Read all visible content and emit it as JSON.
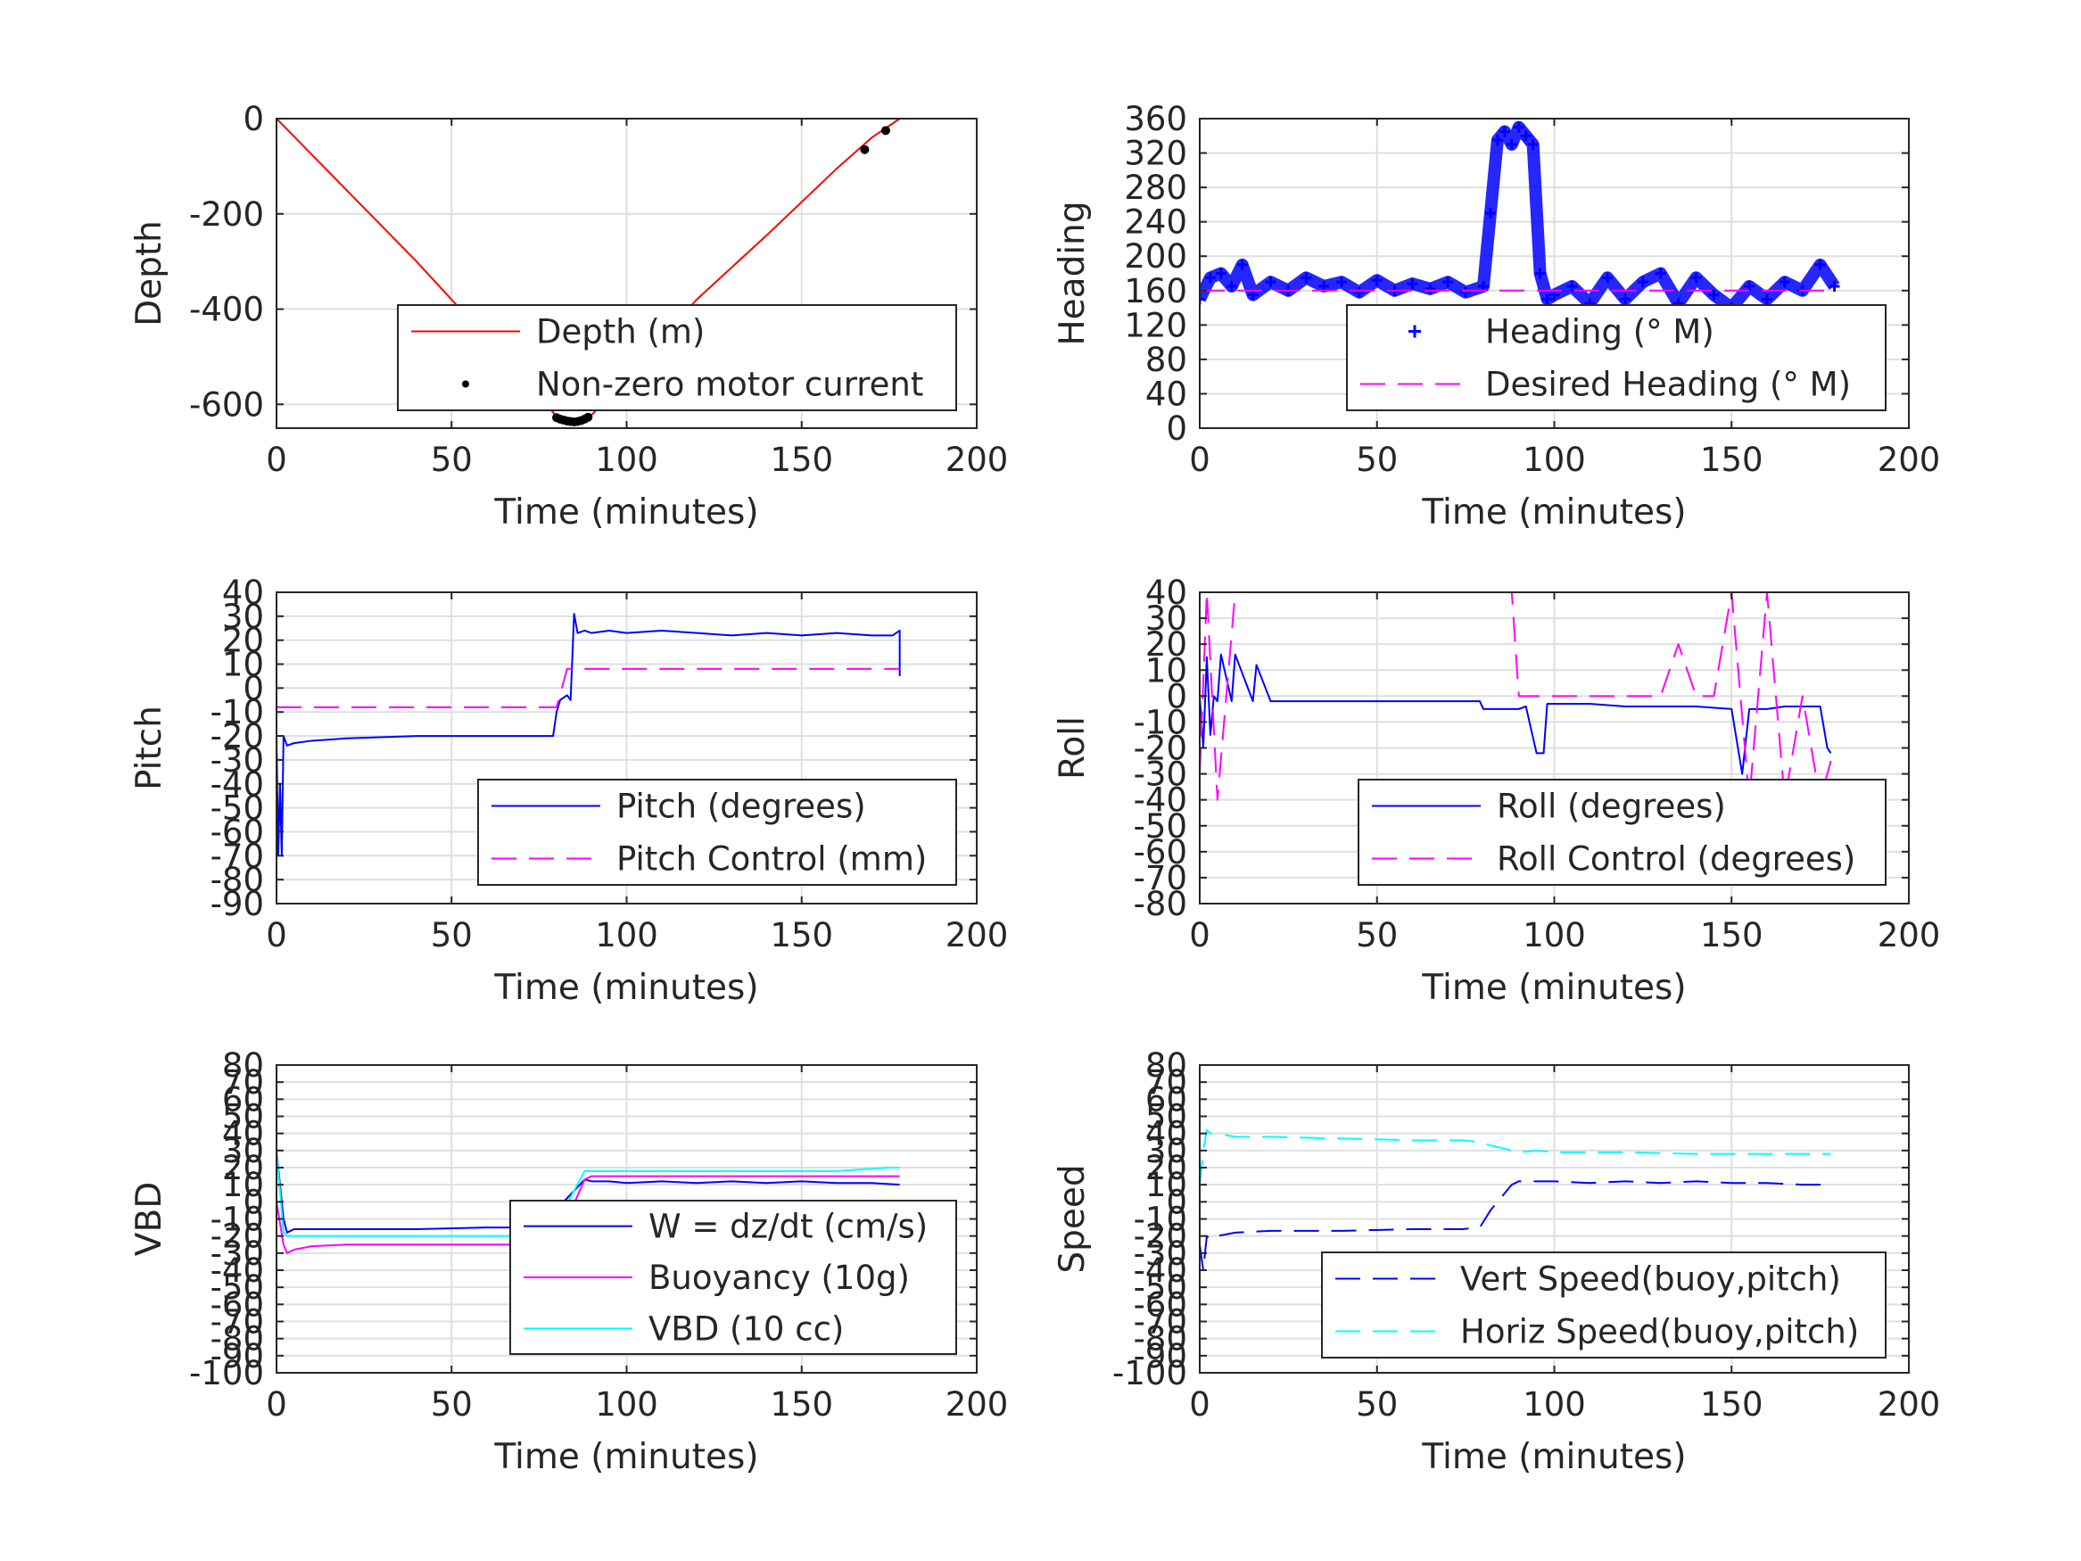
{
  "chart_data": [
    {
      "id": "depth",
      "type": "line",
      "xlabel": "Time (minutes)",
      "ylabel": "Depth",
      "xlim": [
        0,
        200
      ],
      "ylim": [
        -650,
        0
      ],
      "xticks": [
        0,
        50,
        100,
        150,
        200
      ],
      "yticks": [
        0,
        -200,
        -400,
        -600
      ],
      "grid": true,
      "legend_position": "lower-right",
      "series": [
        {
          "name": "Depth (m)",
          "style": "line",
          "color": "#ff0000",
          "x": [
            0,
            20,
            40,
            60,
            80,
            83,
            86,
            89,
            100,
            120,
            140,
            160,
            170,
            178
          ],
          "y": [
            0,
            -150,
            -300,
            -460,
            -625,
            -635,
            -638,
            -630,
            -545,
            -380,
            -245,
            -105,
            -40,
            0
          ]
        },
        {
          "name": "Non-zero motor current",
          "style": "dots",
          "color": "#000000",
          "x": [
            80,
            81,
            82,
            83,
            84,
            85,
            86,
            87,
            88,
            89,
            168,
            174
          ],
          "y": [
            -628,
            -631,
            -633,
            -635,
            -636,
            -637,
            -636,
            -634,
            -631,
            -627,
            -65,
            -25
          ]
        }
      ]
    },
    {
      "id": "heading",
      "type": "scatter",
      "xlabel": "Time (minutes)",
      "ylabel": "Heading",
      "xlim": [
        0,
        200
      ],
      "ylim": [
        0,
        360
      ],
      "xticks": [
        0,
        50,
        100,
        150,
        200
      ],
      "yticks": [
        0,
        40,
        80,
        120,
        160,
        200,
        240,
        280,
        320,
        360
      ],
      "grid": true,
      "legend_position": "lower-right",
      "series": [
        {
          "name": "Heading (° M)",
          "style": "plus",
          "color": "#0000ff",
          "x": [
            0,
            3,
            6,
            9,
            12,
            15,
            20,
            25,
            30,
            35,
            40,
            45,
            50,
            55,
            60,
            65,
            70,
            75,
            80,
            82,
            84,
            86,
            88,
            90,
            92,
            94,
            96,
            98,
            100,
            105,
            110,
            115,
            120,
            125,
            130,
            135,
            140,
            145,
            150,
            155,
            160,
            165,
            170,
            175,
            179
          ],
          "y": [
            150,
            175,
            180,
            165,
            190,
            155,
            170,
            160,
            175,
            165,
            170,
            158,
            172,
            160,
            168,
            162,
            170,
            158,
            165,
            250,
            335,
            345,
            330,
            350,
            340,
            330,
            180,
            150,
            155,
            165,
            145,
            175,
            150,
            170,
            180,
            145,
            175,
            155,
            140,
            165,
            150,
            170,
            160,
            190,
            165
          ]
        },
        {
          "name": "Desired Heading (° M)",
          "style": "dashed",
          "color": "#ff00ff",
          "x": [
            0,
            179
          ],
          "y": [
            160,
            160
          ]
        }
      ]
    },
    {
      "id": "pitch",
      "type": "line",
      "xlabel": "Time (minutes)",
      "ylabel": "Pitch",
      "xlim": [
        0,
        200
      ],
      "ylim": [
        -90,
        40
      ],
      "xticks": [
        0,
        50,
        100,
        150,
        200
      ],
      "yticks": [
        40,
        30,
        20,
        10,
        0,
        -10,
        -20,
        -30,
        -40,
        -50,
        -60,
        -70,
        -80,
        -90
      ],
      "grid": true,
      "legend_position": "lower-right",
      "series": [
        {
          "name": "Pitch (degrees)",
          "style": "line",
          "color": "#0000ff",
          "x": [
            0,
            0.5,
            1,
            1.5,
            2,
            3,
            5,
            10,
            20,
            40,
            60,
            79,
            80,
            81,
            83,
            84,
            85,
            86,
            88,
            90,
            95,
            100,
            110,
            120,
            130,
            140,
            150,
            160,
            170,
            176,
            178,
            178
          ],
          "y": [
            -20,
            -70,
            -40,
            -70,
            -20,
            -24,
            -23,
            -22,
            -21,
            -20,
            -20,
            -20,
            -10,
            -5,
            -3,
            -5,
            31,
            23,
            24,
            23,
            24,
            23,
            24,
            23,
            22,
            23,
            22,
            23,
            22,
            22,
            24,
            5
          ]
        },
        {
          "name": "Pitch Control (mm)",
          "style": "dashed",
          "color": "#ff00ff",
          "x": [
            0,
            80,
            83,
            178
          ],
          "y": [
            -8,
            -8,
            8,
            8
          ]
        }
      ]
    },
    {
      "id": "roll",
      "type": "line",
      "xlabel": "Time (minutes)",
      "ylabel": "Roll",
      "xlim": [
        0,
        200
      ],
      "ylim": [
        -80,
        40
      ],
      "xticks": [
        0,
        50,
        100,
        150,
        200
      ],
      "yticks": [
        40,
        30,
        20,
        10,
        0,
        -10,
        -20,
        -30,
        -40,
        -50,
        -60,
        -70,
        -80
      ],
      "grid": true,
      "legend_position": "lower-right",
      "series": [
        {
          "name": "Roll (degrees)",
          "style": "line",
          "color": "#0000ff",
          "x": [
            0,
            1,
            2,
            3,
            4,
            5,
            6,
            9,
            10,
            15,
            16,
            20,
            30,
            40,
            50,
            60,
            70,
            79,
            80,
            90,
            92,
            95,
            97,
            98,
            100,
            110,
            120,
            130,
            140,
            150,
            153,
            155,
            160,
            165,
            170,
            175,
            177,
            178
          ],
          "y": [
            0,
            -20,
            15,
            -15,
            0,
            -2,
            16,
            -2,
            16,
            -2,
            12,
            -2,
            -2,
            -2,
            -2,
            -2,
            -2,
            -2,
            -5,
            -5,
            -4,
            -22,
            -22,
            -3,
            -3,
            -3,
            -4,
            -4,
            -4,
            -5,
            -30,
            -5,
            -5,
            -4,
            -4,
            -4,
            -20,
            -22
          ]
        },
        {
          "name": "Roll Control (degrees)",
          "style": "dashed",
          "color": "#ff00ff",
          "x": [
            0,
            2,
            5,
            10,
            20,
            30,
            40,
            50,
            60,
            70,
            80,
            88,
            90,
            95,
            100,
            110,
            120,
            130,
            135,
            140,
            145,
            150,
            155,
            160,
            165,
            170,
            175,
            178
          ],
          "y": [
            -30,
            40,
            -40,
            40,
            40,
            40,
            40,
            40,
            40,
            40,
            40,
            40,
            0,
            0,
            0,
            0,
            0,
            0,
            20,
            0,
            0,
            40,
            -40,
            40,
            -40,
            0,
            -40,
            -25
          ]
        }
      ]
    },
    {
      "id": "vbd",
      "type": "line",
      "xlabel": "Time (minutes)",
      "ylabel": "VBD",
      "xlim": [
        0,
        200
      ],
      "ylim": [
        -100,
        80
      ],
      "xticks": [
        0,
        50,
        100,
        150,
        200
      ],
      "yticks": [
        80,
        70,
        60,
        50,
        40,
        30,
        20,
        10,
        0,
        -10,
        -20,
        -30,
        -40,
        -50,
        -60,
        -70,
        -80,
        -90,
        -100
      ],
      "grid": true,
      "legend_position": "lower-right",
      "series": [
        {
          "name": "W = dz/dt (cm/s)",
          "style": "line",
          "color": "#0000ff",
          "x": [
            0,
            1,
            2,
            3,
            5,
            10,
            20,
            40,
            60,
            79,
            80,
            82,
            88,
            90,
            95,
            100,
            110,
            120,
            130,
            140,
            150,
            160,
            170,
            178
          ],
          "y": [
            30,
            10,
            -10,
            -18,
            -16,
            -16,
            -16,
            -16,
            -15,
            -15,
            -10,
            0,
            13,
            12,
            12,
            11,
            12,
            11,
            12,
            11,
            12,
            11,
            11,
            10
          ]
        },
        {
          "name": "Buoyancy (10g)",
          "style": "line",
          "color": "#ff00ff",
          "x": [
            0,
            2,
            3,
            5,
            10,
            20,
            40,
            60,
            79,
            80,
            82,
            88,
            90,
            100,
            120,
            140,
            160,
            178
          ],
          "y": [
            0,
            -25,
            -30,
            -28,
            -26,
            -25,
            -25,
            -25,
            -25,
            -24,
            -15,
            13,
            15,
            15,
            15,
            15,
            15,
            15
          ]
        },
        {
          "name": "VBD (10 cc)",
          "style": "line",
          "color": "#00ffff",
          "x": [
            0,
            2,
            3,
            5,
            10,
            20,
            40,
            60,
            79,
            80,
            82,
            88,
            90,
            100,
            120,
            140,
            160,
            175,
            178
          ],
          "y": [
            30,
            -18,
            -20,
            -20,
            -20,
            -20,
            -20,
            -20,
            -20,
            -18,
            -5,
            18,
            18,
            18,
            18,
            18,
            18,
            20,
            20
          ]
        }
      ]
    },
    {
      "id": "speed",
      "type": "line",
      "xlabel": "Time (minutes)",
      "ylabel": "Speed",
      "xlim": [
        0,
        200
      ],
      "ylim": [
        -100,
        80
      ],
      "xticks": [
        0,
        50,
        100,
        150,
        200
      ],
      "yticks": [
        80,
        70,
        60,
        50,
        40,
        30,
        20,
        10,
        0,
        -10,
        -20,
        -30,
        -40,
        -50,
        -60,
        -70,
        -80,
        -90,
        -100
      ],
      "grid": true,
      "legend_position": "lower-right",
      "series": [
        {
          "name": "Vert Speed(buoy,pitch)",
          "style": "dashed",
          "color": "#0000ff",
          "x": [
            0,
            1,
            2,
            3,
            5,
            10,
            20,
            40,
            60,
            74,
            79,
            82,
            88,
            90,
            100,
            110,
            120,
            130,
            140,
            150,
            160,
            170,
            178
          ],
          "y": [
            -25,
            -40,
            -20,
            -22,
            -20,
            -18,
            -17,
            -17,
            -16,
            -16,
            -15,
            -5,
            10,
            12,
            12,
            11,
            12,
            11,
            12,
            11,
            11,
            10,
            10
          ]
        },
        {
          "name": "Horiz Speed(buoy,pitch)",
          "style": "dashed",
          "color": "#00ffff",
          "x": [
            0,
            1,
            2,
            3,
            5,
            10,
            20,
            40,
            60,
            74,
            79,
            82,
            88,
            90,
            95,
            100,
            120,
            140,
            160,
            178
          ],
          "y": [
            10,
            30,
            42,
            40,
            40,
            38,
            38,
            37,
            36,
            36,
            35,
            33,
            30,
            29,
            30,
            29,
            29,
            28,
            28,
            28
          ]
        }
      ]
    }
  ]
}
